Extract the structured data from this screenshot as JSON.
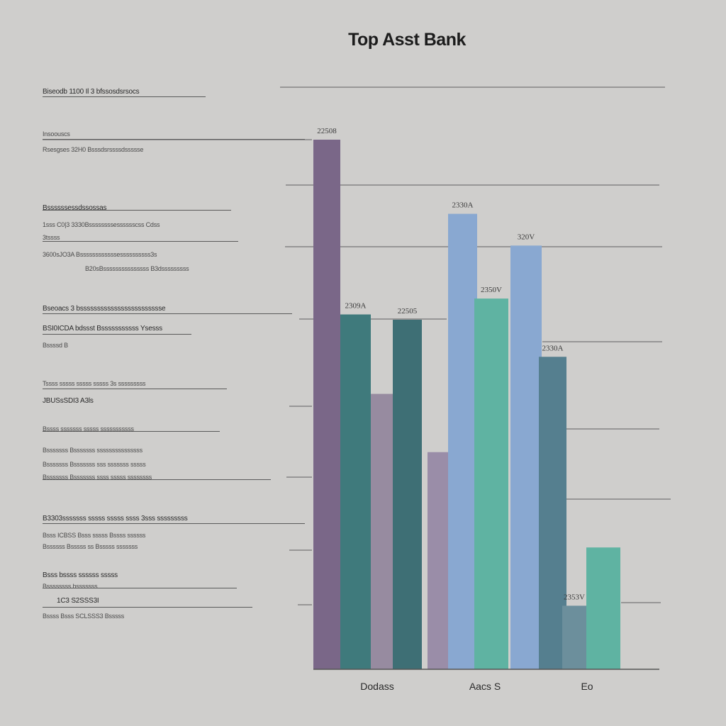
{
  "chart_data": {
    "type": "bar",
    "title": "Top Asst Bank",
    "xlabel": "",
    "ylabel": "",
    "ylim": [
      0,
      100
    ],
    "grid": true,
    "bars": [
      {
        "category": "Dodass",
        "value": 100,
        "label": "22508",
        "color": "#7a6788"
      },
      {
        "category": "Dodass",
        "value": 67,
        "label": "2309A",
        "color": "#3f7a7c"
      },
      {
        "category": "Dodass",
        "value": 52,
        "label": "",
        "color": "#978ba0"
      },
      {
        "category": "Dodass",
        "value": 66,
        "label": "22505",
        "color": "#3e6f75"
      },
      {
        "category": "Aacs S",
        "value": 41,
        "label": "",
        "color": "#9a8da8"
      },
      {
        "category": "Aacs S",
        "value": 86,
        "label": "2330A",
        "color": "#89a8d1"
      },
      {
        "category": "Aacs S",
        "value": 70,
        "label": "2350V",
        "color": "#5fb3a2"
      },
      {
        "category": "Aacs S",
        "value": 80,
        "label": "320V",
        "color": "#89a8d1"
      },
      {
        "category": "Eo",
        "value": 59,
        "label": "2330A",
        "color": "#557f8f"
      },
      {
        "category": "Eo",
        "value": 12,
        "label": "2353V",
        "color": "#6c8f9c"
      },
      {
        "category": "Eo",
        "value": 23,
        "label": "",
        "color": "#5fb3a2"
      }
    ],
    "categories": [
      "Dodass",
      "Aacs S",
      "Eo"
    ]
  },
  "left_notes": [
    {
      "text": "Biseodb    1100    Il   3 bfssosdsrsocs",
      "strong": true
    },
    {
      "text": "Insoouscs",
      "strong": false
    },
    {
      "text": "Rsesgses   32H0   Bsssdsrssssdssssse",
      "strong": false
    },
    {
      "text": "Bssssssessdssossas",
      "strong": true
    },
    {
      "text": "1sss C0|3    3330Bssssssssesssssscss Cdss",
      "strong": false
    },
    {
      "text": "3tssss",
      "strong": false
    },
    {
      "text": "3600sJO3A    Bssssssssssssessssssssss3s",
      "strong": false
    },
    {
      "text": "B20sBsssssssssssssss  B3dsssssssss",
      "strong": false
    },
    {
      "text": "Bseoacs 3   bsssssssssssssssssssssssse",
      "strong": true
    },
    {
      "text": "BSI0ICDA    bdssst Bsssssssssss Ysesss",
      "strong": true
    },
    {
      "text": "Bssssd  B",
      "strong": false
    },
    {
      "text": "Tssss sssss sssss sssss 3s sssssssss",
      "strong": false
    },
    {
      "text": "JBUSsSDI3    A3ls",
      "strong": true
    },
    {
      "text": "Bssss sssssss sssss sssssssssss",
      "strong": false
    },
    {
      "text": "Bsssssss      Bsssssss sssssssssssssss",
      "strong": false
    },
    {
      "text": "Bsssssss      Bsssssss sss sssssss sssss",
      "strong": false
    },
    {
      "text": "Bsssssss      Bsssssss ssss sssss ssssssss",
      "strong": false
    },
    {
      "text": "B3303sssssss sssss sssss ssss 3sss sssssssss",
      "strong": true
    },
    {
      "text": "Bsss ICBSS     Bsss sssss    Bssss ssssss",
      "strong": false
    },
    {
      "text": "Bssssss      Bsssss ss     Bsssss sssssss",
      "strong": false
    },
    {
      "text": "Bsss bssss ssssss sssss",
      "strong": true
    },
    {
      "text": "Bssssssss   bsssssss",
      "strong": false
    },
    {
      "text": "1C3    S2SSS3I",
      "strong": true
    },
    {
      "text": "Bssss Bsss    SCLSSS3 Bsssss",
      "strong": false
    }
  ]
}
